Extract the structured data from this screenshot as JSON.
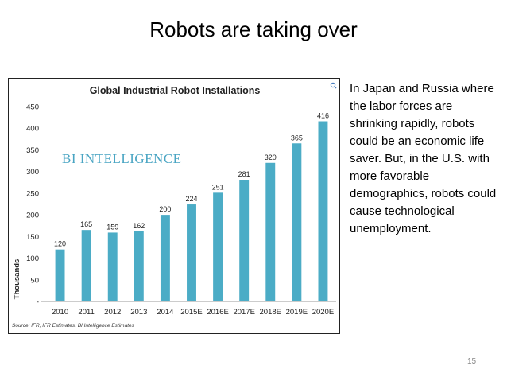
{
  "slide": {
    "title": "Robots are taking over",
    "side_text": "In Japan and Russia where the labor forces are shrinking rapidly, robots could be an economic life saver.  But, in the U.S. with more favorable demographics, robots could cause technological unemployment.",
    "page_number": "15"
  },
  "chart_data": {
    "type": "bar",
    "title": "Global Industrial Robot Installations",
    "watermark": "BI INTELLIGENCE",
    "ylabel": "Thousands",
    "xlabel": "",
    "categories": [
      "2010",
      "2011",
      "2012",
      "2013",
      "2014",
      "2015E",
      "2016E",
      "2017E",
      "2018E",
      "2019E",
      "2020E"
    ],
    "values": [
      120,
      165,
      159,
      162,
      200,
      224,
      251,
      281,
      320,
      365,
      416
    ],
    "ylim": [
      0,
      450
    ],
    "yticks": [
      "-",
      "50",
      "100",
      "150",
      "200",
      "250",
      "300",
      "350",
      "400",
      "450"
    ],
    "source": "Source: IFR, IFR Estimates, BI Intelligence Estimates",
    "bar_color": "#4bacc6",
    "grid": false
  }
}
